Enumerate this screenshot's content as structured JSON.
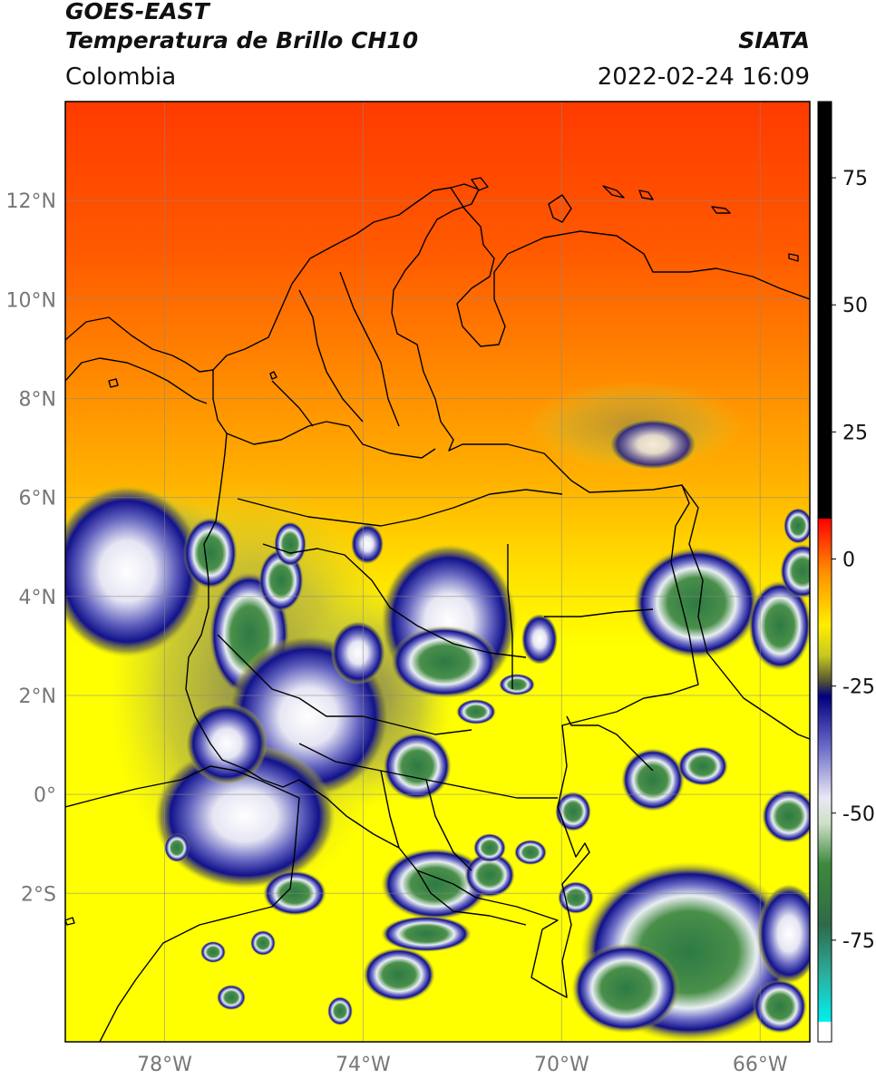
{
  "header": {
    "satellite": "GOES-EAST",
    "product": "Temperatura de Brillo CH10",
    "region": "Colombia",
    "agency": "SIATA",
    "datetime": "2022-02-24 16:09"
  },
  "map": {
    "lat_labels": [
      "12°N",
      "10°N",
      "8°N",
      "6°N",
      "4°N",
      "2°N",
      "0°",
      "2°S"
    ],
    "lon_labels": [
      "78°W",
      "74°W",
      "70°W",
      "66°W"
    ],
    "lat_values": [
      12,
      10,
      8,
      6,
      4,
      2,
      0,
      -2
    ],
    "lon_values": [
      -78,
      -74,
      -70,
      -66
    ],
    "extent": {
      "lon_min": -80,
      "lon_max": -65,
      "lat_min": -5,
      "lat_max": 14
    }
  },
  "colorbar": {
    "tick_labels": [
      "75",
      "50",
      "25",
      "0",
      "-25",
      "-50",
      "-75"
    ],
    "tick_values": [
      75,
      50,
      25,
      0,
      -25,
      -50,
      -75
    ],
    "range": [
      -95,
      90
    ],
    "stops": [
      {
        "v": 90,
        "c": "#000000"
      },
      {
        "v": 8,
        "c": "#000000"
      },
      {
        "v": 7.9,
        "c": "#ff0000"
      },
      {
        "v": -2,
        "c": "#ff8800"
      },
      {
        "v": -13,
        "c": "#ffee00"
      },
      {
        "v": -19,
        "c": "#c8c820"
      },
      {
        "v": -24,
        "c": "#555533"
      },
      {
        "v": -27,
        "c": "#000080"
      },
      {
        "v": -37,
        "c": "#6b6bc8"
      },
      {
        "v": -47,
        "c": "#e8e8f4"
      },
      {
        "v": -52,
        "c": "#d0e0c8"
      },
      {
        "v": -60,
        "c": "#3c8a3c"
      },
      {
        "v": -72,
        "c": "#2f6a48"
      },
      {
        "v": -82,
        "c": "#2ab0a0"
      },
      {
        "v": -91,
        "c": "#00f0f0"
      },
      {
        "v": -91.1,
        "c": "#ffffff"
      },
      {
        "v": -95,
        "c": "#ffffff"
      }
    ]
  }
}
